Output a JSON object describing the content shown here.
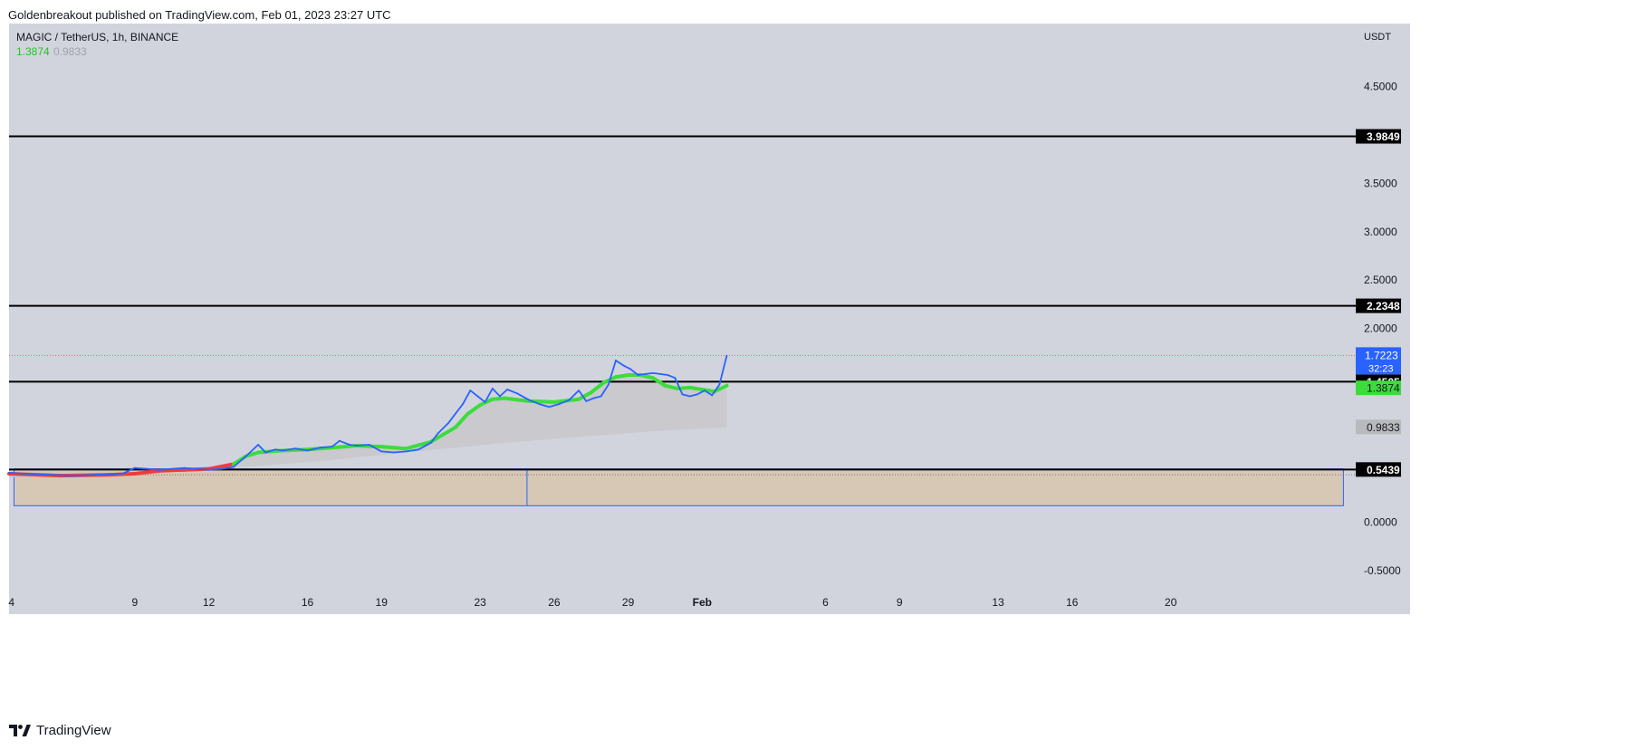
{
  "published_line": "Goldenbreakout published on TradingView.com, Feb 01, 2023 23:27 UTC",
  "footer": {
    "brand": "TradingView",
    "logo_icon": "tradingview-logo-icon"
  },
  "colors": {
    "background": "#d1d4dc",
    "price_line": "#2962ff",
    "ma_up": "#3ddc3d",
    "ma_down": "#f23b3b",
    "level_line": "#000000",
    "zone_fill": "#d7c8b5",
    "zone_border": "#2962ff",
    "cloud_fill": "#c8c8cc",
    "last_price_dotted": "#e0607a"
  },
  "chart_data": {
    "type": "line",
    "title": "MAGIC / TetherUS, 1h, BINANCE",
    "legend_values": [
      "1.3874",
      "0.9833"
    ],
    "currency_label": "USDT",
    "x_axis": {
      "tick_labels": [
        "4",
        "9",
        "12",
        "16",
        "19",
        "23",
        "26",
        "29",
        "Feb",
        "6",
        "9",
        "13",
        "16",
        "20"
      ],
      "tick_days": [
        4,
        9,
        12,
        16,
        19,
        23,
        26,
        29,
        32,
        37,
        40,
        44,
        47,
        51
      ],
      "range_days": [
        3.9,
        58.5
      ]
    },
    "y_axis": {
      "tick_labels": [
        "4.5000",
        "3.5000",
        "3.0000",
        "2.5000",
        "2.0000",
        "0.0000",
        "-0.5000"
      ],
      "tick_values": [
        4.5,
        3.5,
        3.0,
        2.5,
        2.0,
        0.0,
        -0.5
      ],
      "range": [
        -0.95,
        5.15
      ]
    },
    "horizontal_levels": [
      {
        "label": "3.9849",
        "value": 3.9849
      },
      {
        "label": "2.2348",
        "value": 2.2348
      },
      {
        "label": "1.4505",
        "value": 1.4505
      },
      {
        "label": "0.5439",
        "value": 0.5439
      }
    ],
    "price_badges": [
      {
        "label": "1.7223",
        "sub": "32:23",
        "value": 1.7223,
        "style": "blue"
      },
      {
        "label": "1.3874",
        "value": 1.3874,
        "style": "green"
      },
      {
        "label": "0.9833",
        "value": 0.9833,
        "style": "gray"
      }
    ],
    "zone": {
      "top": 0.55,
      "bottom": 0.17,
      "start_day": 4.1,
      "mid_day": 24.9,
      "end_day": 58.0
    },
    "series": [
      {
        "name": "MAGIC/USDT",
        "x": [
          3.9,
          4.5,
          5.5,
          6.5,
          7.5,
          8.5,
          9.0,
          9.5,
          10.0,
          10.5,
          11.0,
          11.5,
          12.0,
          12.5,
          13.0,
          13.5,
          14.0,
          14.3,
          14.7,
          15.0,
          15.5,
          16.0,
          16.5,
          17.0,
          17.3,
          17.7,
          18.0,
          18.5,
          19.0,
          19.5,
          20.0,
          20.5,
          21.0,
          21.3,
          21.7,
          22.0,
          22.3,
          22.6,
          22.9,
          23.2,
          23.5,
          23.8,
          24.1,
          24.5,
          25.0,
          25.4,
          25.8,
          26.2,
          26.6,
          27.0,
          27.3,
          27.6,
          27.9,
          28.2,
          28.5,
          28.8,
          29.1,
          29.4,
          29.7,
          30.0,
          30.3,
          30.6,
          30.9,
          31.2,
          31.5,
          31.8,
          32.1,
          32.4,
          32.7,
          33.0
        ],
        "y": [
          0.51,
          0.5,
          0.49,
          0.48,
          0.49,
          0.5,
          0.56,
          0.55,
          0.54,
          0.55,
          0.56,
          0.55,
          0.54,
          0.55,
          0.57,
          0.68,
          0.8,
          0.72,
          0.75,
          0.74,
          0.76,
          0.74,
          0.77,
          0.78,
          0.84,
          0.8,
          0.79,
          0.8,
          0.73,
          0.72,
          0.73,
          0.75,
          0.82,
          0.92,
          1.02,
          1.12,
          1.22,
          1.36,
          1.3,
          1.24,
          1.38,
          1.3,
          1.37,
          1.33,
          1.26,
          1.22,
          1.19,
          1.22,
          1.26,
          1.36,
          1.25,
          1.28,
          1.3,
          1.42,
          1.67,
          1.62,
          1.58,
          1.52,
          1.53,
          1.54,
          1.53,
          1.52,
          1.49,
          1.32,
          1.3,
          1.32,
          1.36,
          1.31,
          1.42,
          1.72
        ]
      },
      {
        "name": "Moving Average",
        "x": [
          3.9,
          6.0,
          8.0,
          9.0,
          10.0,
          11.0,
          12.0,
          13.0,
          13.5,
          14.0,
          15.0,
          16.0,
          17.0,
          18.0,
          19.0,
          20.0,
          21.0,
          22.0,
          22.5,
          23.0,
          23.5,
          24.0,
          25.0,
          26.0,
          27.0,
          27.5,
          28.0,
          28.5,
          29.0,
          29.5,
          30.0,
          30.5,
          31.0,
          31.5,
          32.0,
          32.5,
          33.0
        ],
        "y": [
          0.5,
          0.48,
          0.49,
          0.5,
          0.53,
          0.54,
          0.55,
          0.6,
          0.68,
          0.72,
          0.74,
          0.75,
          0.77,
          0.79,
          0.78,
          0.76,
          0.83,
          0.98,
          1.12,
          1.21,
          1.27,
          1.28,
          1.25,
          1.24,
          1.27,
          1.34,
          1.44,
          1.5,
          1.52,
          1.52,
          1.49,
          1.41,
          1.38,
          1.39,
          1.37,
          1.35,
          1.41
        ]
      }
    ],
    "cloud": {
      "x": [
        3.9,
        10.0,
        13.0,
        16.0,
        20.0,
        24.0,
        28.0,
        30.0,
        33.0
      ],
      "lower": [
        0.46,
        0.52,
        0.56,
        0.62,
        0.72,
        0.82,
        0.9,
        0.94,
        0.98
      ]
    }
  }
}
